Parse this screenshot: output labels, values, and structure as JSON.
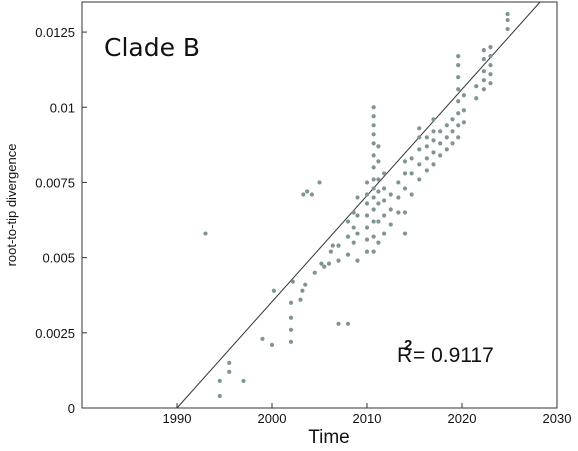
{
  "chart_data": {
    "type": "scatter",
    "title": "Clade B",
    "xlabel": "Time",
    "ylabel": "root-to-tip divergence",
    "xlim": [
      1980,
      2030
    ],
    "ylim": [
      0,
      0.0135
    ],
    "x_ticks": [
      1990,
      2000,
      2010,
      2020,
      2030
    ],
    "y_ticks": [
      0,
      0.0025,
      0.005,
      0.0075,
      0.01,
      0.0125
    ],
    "x_tick_labels": [
      "1990",
      "2000",
      "2010",
      "2020",
      "2030"
    ],
    "y_tick_labels": [
      "0",
      "0.0025",
      "0.005",
      "0.0075",
      "0.01",
      "0.0125"
    ],
    "grid": false,
    "annotation": {
      "r2_symbol": "R",
      "r2_exponent": "2",
      "r2_value": "= 0.9117"
    },
    "regression_line": {
      "x": [
        1990,
        2028.5
      ],
      "y": [
        0,
        0.0136
      ]
    },
    "marker_color": "#7f9593",
    "line_color": "#333333",
    "points": [
      [
        1993,
        0.0058
      ],
      [
        1994.5,
        0.0004
      ],
      [
        1994.5,
        0.0009
      ],
      [
        1995.5,
        0.0012
      ],
      [
        1995.5,
        0.0015
      ],
      [
        1997,
        0.0009
      ],
      [
        1999,
        0.0023
      ],
      [
        2000,
        0.0021
      ],
      [
        2000.2,
        0.0039
      ],
      [
        2002,
        0.0022
      ],
      [
        2002,
        0.0026
      ],
      [
        2002,
        0.003
      ],
      [
        2002,
        0.0035
      ],
      [
        2002.2,
        0.0042
      ],
      [
        2003,
        0.0036
      ],
      [
        2003.2,
        0.0039
      ],
      [
        2003.5,
        0.0041
      ],
      [
        2003.3,
        0.0071
      ],
      [
        2003.7,
        0.0072
      ],
      [
        2004.2,
        0.0071
      ],
      [
        2005,
        0.0075
      ],
      [
        2004.5,
        0.0045
      ],
      [
        2005.2,
        0.0048
      ],
      [
        2005.5,
        0.0047
      ],
      [
        2006,
        0.0048
      ],
      [
        2006.2,
        0.0052
      ],
      [
        2006.4,
        0.0054
      ],
      [
        2007,
        0.0028
      ],
      [
        2008,
        0.0028
      ],
      [
        2007,
        0.0049
      ],
      [
        2007,
        0.0054
      ],
      [
        2008,
        0.0051
      ],
      [
        2008,
        0.0057
      ],
      [
        2008,
        0.0062
      ],
      [
        2008.6,
        0.0055
      ],
      [
        2008.6,
        0.006
      ],
      [
        2008.6,
        0.0065
      ],
      [
        2009,
        0.0049
      ],
      [
        2009,
        0.0058
      ],
      [
        2009,
        0.0064
      ],
      [
        2009,
        0.007
      ],
      [
        2010,
        0.0052
      ],
      [
        2010,
        0.0056
      ],
      [
        2010,
        0.006
      ],
      [
        2010,
        0.0064
      ],
      [
        2010,
        0.0068
      ],
      [
        2010,
        0.0071
      ],
      [
        2010,
        0.0075
      ],
      [
        2010.7,
        0.0052
      ],
      [
        2010.7,
        0.0057
      ],
      [
        2010.7,
        0.0062
      ],
      [
        2010.7,
        0.0066
      ],
      [
        2010.7,
        0.007
      ],
      [
        2010.7,
        0.0073
      ],
      [
        2010.7,
        0.0076
      ],
      [
        2010.7,
        0.008
      ],
      [
        2010.7,
        0.0084
      ],
      [
        2010.7,
        0.0088
      ],
      [
        2010.7,
        0.0091
      ],
      [
        2010.7,
        0.0094
      ],
      [
        2010.7,
        0.0097
      ],
      [
        2010.7,
        0.01
      ],
      [
        2011.2,
        0.0055
      ],
      [
        2011.2,
        0.0062
      ],
      [
        2011.2,
        0.0068
      ],
      [
        2011.2,
        0.0072
      ],
      [
        2011.2,
        0.0076
      ],
      [
        2011.2,
        0.0082
      ],
      [
        2011.2,
        0.0087
      ],
      [
        2011.8,
        0.0058
      ],
      [
        2011.8,
        0.0064
      ],
      [
        2011.8,
        0.0069
      ],
      [
        2011.8,
        0.0073
      ],
      [
        2011.8,
        0.0078
      ],
      [
        2012.5,
        0.0061
      ],
      [
        2012.5,
        0.0066
      ],
      [
        2012.5,
        0.0071
      ],
      [
        2013.3,
        0.0065
      ],
      [
        2013.3,
        0.007
      ],
      [
        2013.3,
        0.0075
      ],
      [
        2014,
        0.0058
      ],
      [
        2014,
        0.0065
      ],
      [
        2014,
        0.0073
      ],
      [
        2014,
        0.0078
      ],
      [
        2014,
        0.0082
      ],
      [
        2014.7,
        0.0071
      ],
      [
        2014.7,
        0.0078
      ],
      [
        2014.7,
        0.0083
      ],
      [
        2015.5,
        0.0076
      ],
      [
        2015.5,
        0.0081
      ],
      [
        2015.5,
        0.0086
      ],
      [
        2015.5,
        0.009
      ],
      [
        2015.5,
        0.0093
      ],
      [
        2016.3,
        0.0079
      ],
      [
        2016.3,
        0.0083
      ],
      [
        2016.3,
        0.0087
      ],
      [
        2016.3,
        0.009
      ],
      [
        2017,
        0.0081
      ],
      [
        2017,
        0.0085
      ],
      [
        2017,
        0.0089
      ],
      [
        2017,
        0.0092
      ],
      [
        2017,
        0.0096
      ],
      [
        2017.7,
        0.0084
      ],
      [
        2017.7,
        0.0088
      ],
      [
        2017.7,
        0.0092
      ],
      [
        2018.4,
        0.0086
      ],
      [
        2018.4,
        0.009
      ],
      [
        2018.4,
        0.0094
      ],
      [
        2019,
        0.0088
      ],
      [
        2019,
        0.0092
      ],
      [
        2019,
        0.0096
      ],
      [
        2019.6,
        0.009
      ],
      [
        2019.6,
        0.0094
      ],
      [
        2019.6,
        0.0098
      ],
      [
        2019.6,
        0.0102
      ],
      [
        2019.6,
        0.0106
      ],
      [
        2019.6,
        0.011
      ],
      [
        2019.6,
        0.0114
      ],
      [
        2019.6,
        0.0117
      ],
      [
        2020.2,
        0.0095
      ],
      [
        2020.2,
        0.0099
      ],
      [
        2020.2,
        0.0104
      ],
      [
        2021.5,
        0.0103
      ],
      [
        2021.5,
        0.0107
      ],
      [
        2022.3,
        0.0106
      ],
      [
        2022.3,
        0.0109
      ],
      [
        2022.3,
        0.0112
      ],
      [
        2022.3,
        0.0116
      ],
      [
        2022.3,
        0.0119
      ],
      [
        2023,
        0.0108
      ],
      [
        2023,
        0.0111
      ],
      [
        2023,
        0.0114
      ],
      [
        2023,
        0.0117
      ],
      [
        2023,
        0.012
      ],
      [
        2024.8,
        0.0126
      ],
      [
        2024.8,
        0.0129
      ],
      [
        2024.8,
        0.0131
      ]
    ]
  }
}
